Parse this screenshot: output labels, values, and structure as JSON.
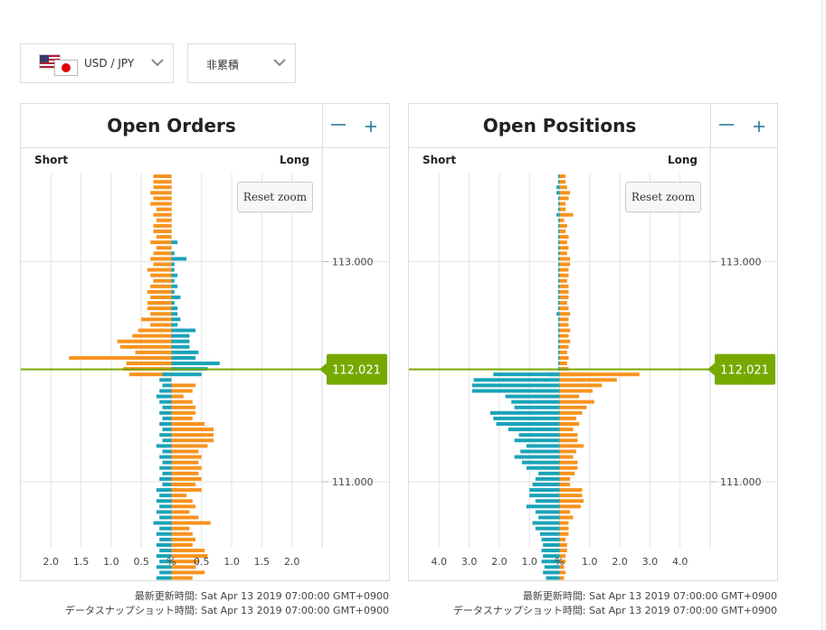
{
  "currency_selector": {
    "label": "USD / JPY",
    "flags": [
      "us-flag-icon",
      "jp-flag-icon"
    ]
  },
  "mode_selector": {
    "label": "非累積"
  },
  "colors": {
    "orders_series": "#f7931e",
    "long_series": "#1aa3b9",
    "price_marker": "#76a900",
    "grid": "#e3e3e3"
  },
  "panels": [
    {
      "title": "Open Orders",
      "short_label": "Short",
      "long_label": "Long",
      "reset_label": "Reset zoom",
      "zoom_out_label": "−",
      "zoom_in_label": "+",
      "footer_updated": "最新更新時間: Sat Apr 13 2019 07:00:00 GMT+0900",
      "footer_snapshot": "データスナップショット時間: Sat Apr 13 2019 07:00:00 GMT+0900"
    },
    {
      "title": "Open Positions",
      "short_label": "Short",
      "long_label": "Long",
      "reset_label": "Reset zoom",
      "zoom_out_label": "−",
      "zoom_in_label": "+",
      "footer_updated": "最新更新時間: Sat Apr 13 2019 07:00:00 GMT+0900",
      "footer_snapshot": "データスナップショット時間: Sat Apr 13 2019 07:00:00 GMT+0900"
    }
  ],
  "chart_data": [
    {
      "type": "bar",
      "orientation": "horizontal",
      "current_price": 112.021,
      "current_price_label": "112.021",
      "y_ticks": [
        113.0,
        111.0
      ],
      "y_tick_labels": [
        "113.000",
        "111.000"
      ],
      "y_range": [
        110.4,
        113.8
      ],
      "x_range": [
        -2.5,
        2.5
      ],
      "x_ticks": [
        -2,
        -1.5,
        -1,
        -0.5,
        0,
        0.5,
        1,
        1.5,
        2
      ],
      "x_tick_labels": [
        "2.0",
        "1.5",
        "1.0",
        "0.5",
        "%",
        "0.5",
        "1.0",
        "1.5",
        "2.0"
      ],
      "bin_size": 0.05,
      "above_price_from": 113.8,
      "below_price_from": 112.0,
      "series": [
        {
          "side": "short",
          "above_values": [
            0.3,
            0.3,
            0.3,
            0.35,
            0.3,
            0.35,
            0.25,
            0.3,
            0.25,
            0.3,
            0.3,
            0.25,
            0.35,
            0.25,
            0.3,
            0.35,
            0.3,
            0.4,
            0.35,
            0.3,
            0.35,
            0.4,
            0.35,
            0.4,
            0.4,
            0.35,
            0.5,
            0.35,
            0.55,
            0.65,
            0.9,
            0.85,
            0.6,
            1.7,
            0.75,
            0.8,
            0.7
          ],
          "below_values": [
            0.15,
            0.2,
            0.15,
            0.2,
            0.25,
            0.2,
            0.15,
            0.2,
            0.15,
            0.2,
            0.15,
            0.2,
            0.15,
            0.25,
            0.15,
            0.2,
            0.15,
            0.2,
            0.15,
            0.2,
            0.15,
            0.25,
            0.2,
            0.25,
            0.2,
            0.25,
            0.2,
            0.3,
            0.2,
            0.25,
            0.2,
            0.25,
            0.2,
            0.25,
            0.2,
            0.25,
            0.2,
            0.25,
            0.2,
            0.2,
            0.3,
            0.25,
            0.2,
            0.15,
            0.2,
            0.15,
            0.2,
            0.15,
            0.15,
            0.1,
            0.1
          ]
        },
        {
          "side": "long",
          "above_values": [
            0.0,
            0.0,
            0.0,
            0.0,
            0.0,
            0.0,
            0.0,
            0.0,
            0.0,
            0.0,
            0.0,
            0.0,
            0.1,
            0.0,
            0.05,
            0.25,
            0.05,
            0.05,
            0.1,
            0.05,
            0.1,
            0.05,
            0.15,
            0.05,
            0.1,
            0.1,
            0.15,
            0.1,
            0.4,
            0.3,
            0.3,
            0.3,
            0.45,
            0.4,
            0.8,
            0.6,
            0.5
          ],
          "below_values": [
            0.0,
            0.0,
            0.4,
            0.35,
            0.2,
            0.35,
            0.4,
            0.4,
            0.35,
            0.55,
            0.7,
            0.7,
            0.7,
            0.6,
            0.45,
            0.5,
            0.45,
            0.5,
            0.45,
            0.5,
            0.4,
            0.5,
            0.25,
            0.35,
            0.4,
            0.3,
            0.45,
            0.65,
            0.3,
            0.35,
            0.4,
            0.35,
            0.55,
            0.6,
            0.45,
            0.4,
            0.55,
            0.35,
            0.35,
            0.6,
            0.35,
            0.4,
            0.35,
            0.7,
            0.3,
            0.35,
            0.3,
            0.25,
            0.5,
            0.5,
            0.45
          ]
        }
      ]
    },
    {
      "type": "bar",
      "orientation": "horizontal",
      "current_price": 112.021,
      "current_price_label": "112.021",
      "y_ticks": [
        113.0,
        111.0
      ],
      "y_tick_labels": [
        "113.000",
        "111.000"
      ],
      "y_range": [
        110.4,
        113.8
      ],
      "x_range": [
        -5,
        5
      ],
      "x_ticks": [
        -4,
        -3,
        -2,
        -1,
        0,
        1,
        2,
        3,
        4
      ],
      "x_tick_labels": [
        "4.0",
        "3.0",
        "2.0",
        "1.0",
        "%",
        "1.0",
        "2.0",
        "3.0",
        "4.0"
      ],
      "bin_size": 0.05,
      "above_price_from": 113.8,
      "below_price_from": 112.0,
      "series": [
        {
          "side": "short",
          "above_values": [
            0.05,
            0.05,
            0.1,
            0.1,
            0.05,
            0.05,
            0.05,
            0.1,
            0.05,
            0.05,
            0.05,
            0.05,
            0.05,
            0.05,
            0.05,
            0.05,
            0.05,
            0.05,
            0.05,
            0.05,
            0.05,
            0.05,
            0.05,
            0.05,
            0.05,
            0.1,
            0.05,
            0.05,
            0.05,
            0.05,
            0.05,
            0.05,
            0.05,
            0.05,
            0.05,
            0.05,
            0.35
          ],
          "below_values": [
            2.2,
            2.85,
            2.9,
            2.9,
            1.8,
            1.6,
            1.5,
            2.3,
            2.2,
            2.1,
            1.7,
            1.35,
            1.5,
            1.1,
            1.3,
            1.5,
            1.25,
            1.1,
            0.7,
            0.8,
            0.9,
            1.0,
            1.0,
            0.8,
            1.1,
            0.8,
            0.7,
            0.9,
            0.8,
            0.65,
            0.6,
            0.55,
            0.6,
            0.55,
            0.6,
            0.5,
            0.55,
            0.45,
            0.55,
            0.55,
            0.6,
            0.5,
            0.5,
            0.45,
            0.55,
            0.45,
            0.5,
            0.4,
            0.4,
            0.45,
            0.4
          ]
        },
        {
          "side": "long",
          "above_values": [
            0.2,
            0.2,
            0.25,
            0.35,
            0.3,
            0.2,
            0.2,
            0.45,
            0.15,
            0.25,
            0.2,
            0.3,
            0.25,
            0.3,
            0.25,
            0.35,
            0.35,
            0.3,
            0.3,
            0.25,
            0.3,
            0.3,
            0.3,
            0.25,
            0.3,
            0.35,
            0.3,
            0.3,
            0.35,
            0.3,
            0.35,
            0.3,
            0.25,
            0.3,
            0.25,
            0.3,
            0.7
          ],
          "below_values": [
            2.65,
            1.9,
            1.4,
            1.1,
            0.65,
            1.15,
            0.9,
            0.75,
            0.55,
            0.65,
            0.45,
            0.6,
            0.6,
            0.8,
            0.55,
            0.45,
            0.6,
            0.6,
            0.5,
            0.35,
            0.35,
            0.75,
            0.75,
            0.8,
            0.7,
            0.35,
            0.45,
            0.3,
            0.3,
            0.3,
            0.2,
            0.25,
            0.25,
            0.2,
            0.2,
            0.15,
            0.2,
            0.15,
            0.2,
            0.3,
            0.35,
            0.15,
            0.1,
            0.15,
            0.1,
            0.1,
            0.1,
            0.05,
            0.15,
            0.1,
            0.15
          ]
        }
      ]
    }
  ]
}
